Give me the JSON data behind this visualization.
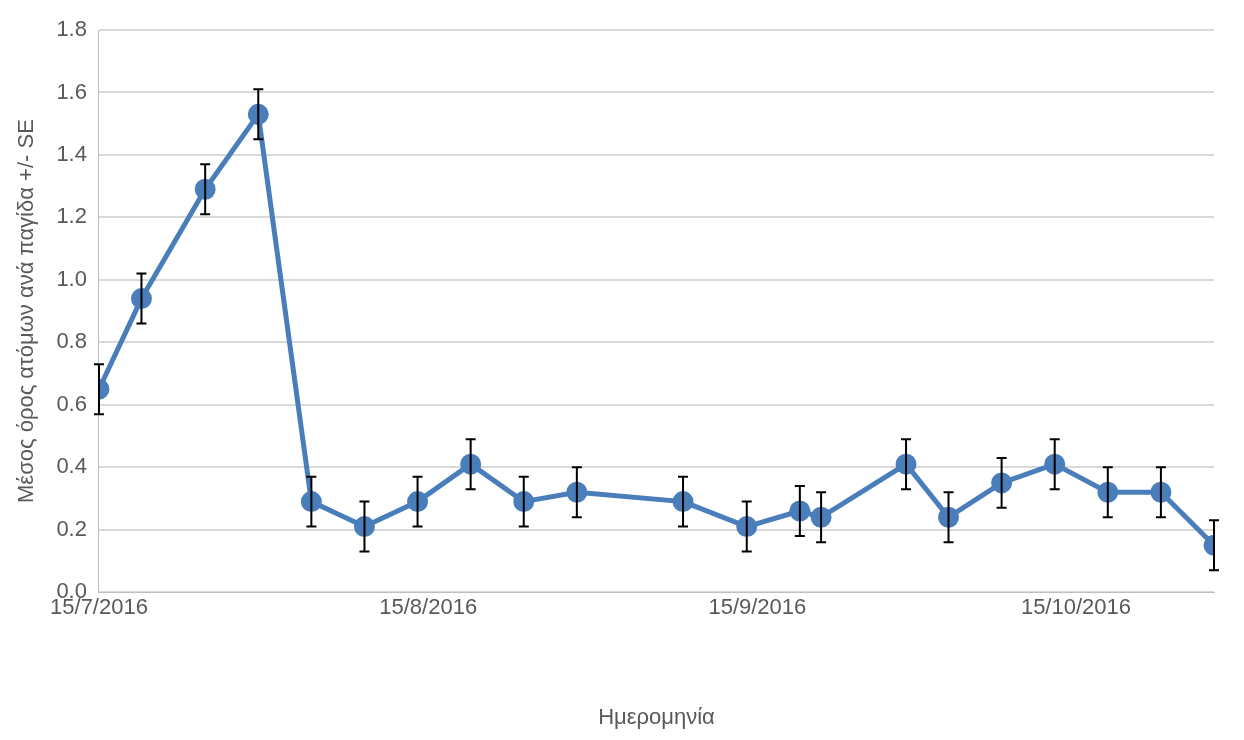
{
  "chart_data": {
    "type": "line",
    "xlabel": "Ημερομηνία",
    "ylabel": "Μέσος όρος ατόμων ανά παγίδα +/- SE",
    "x": [
      "2016-07-15",
      "2016-07-19",
      "2016-07-25",
      "2016-07-30",
      "2016-08-04",
      "2016-08-09",
      "2016-08-14",
      "2016-08-19",
      "2016-08-24",
      "2016-08-29",
      "2016-09-08",
      "2016-09-14",
      "2016-09-19",
      "2016-09-21",
      "2016-09-29",
      "2016-10-03",
      "2016-10-08",
      "2016-10-13",
      "2016-10-18",
      "2016-10-23",
      "2016-10-28"
    ],
    "series": [
      {
        "color": "#4a7ebb",
        "values": [
          0.65,
          0.94,
          1.29,
          1.53,
          0.29,
          0.21,
          0.29,
          0.41,
          0.29,
          0.32,
          0.29,
          0.21,
          0.26,
          0.24,
          0.41,
          0.24,
          0.35,
          0.41,
          0.32,
          0.32,
          0.15
        ],
        "errors": [
          0.08,
          0.08,
          0.08,
          0.08,
          0.08,
          0.08,
          0.08,
          0.08,
          0.08,
          0.08,
          0.08,
          0.08,
          0.08,
          0.08,
          0.08,
          0.08,
          0.08,
          0.08,
          0.08,
          0.08,
          0.08
        ]
      }
    ],
    "xlim": [
      "2016-07-15",
      "2016-10-28"
    ],
    "xticks": [
      {
        "value": "2016-07-15",
        "label": "15/7/2016"
      },
      {
        "value": "2016-08-15",
        "label": "15/8/2016"
      },
      {
        "value": "2016-09-15",
        "label": "15/9/2016"
      },
      {
        "value": "2016-10-15",
        "label": "15/10/2016"
      }
    ],
    "ylim": [
      0,
      1.8
    ],
    "yticks": [
      {
        "value": 0,
        "label": "0.0"
      },
      {
        "value": 0.2,
        "label": "0.2"
      },
      {
        "value": 0.4,
        "label": "0.4"
      },
      {
        "value": 0.6,
        "label": "0.6"
      },
      {
        "value": 0.8,
        "label": "0.8"
      },
      {
        "value": 1,
        "label": "1.0"
      },
      {
        "value": 1.2,
        "label": "1.2"
      },
      {
        "value": 1.4,
        "label": "1.4"
      },
      {
        "value": 1.6,
        "label": "1.6"
      },
      {
        "value": 1.8,
        "label": "1.8"
      }
    ],
    "grid": "y",
    "legend": false,
    "marker": "circle",
    "line_style": "solid"
  }
}
